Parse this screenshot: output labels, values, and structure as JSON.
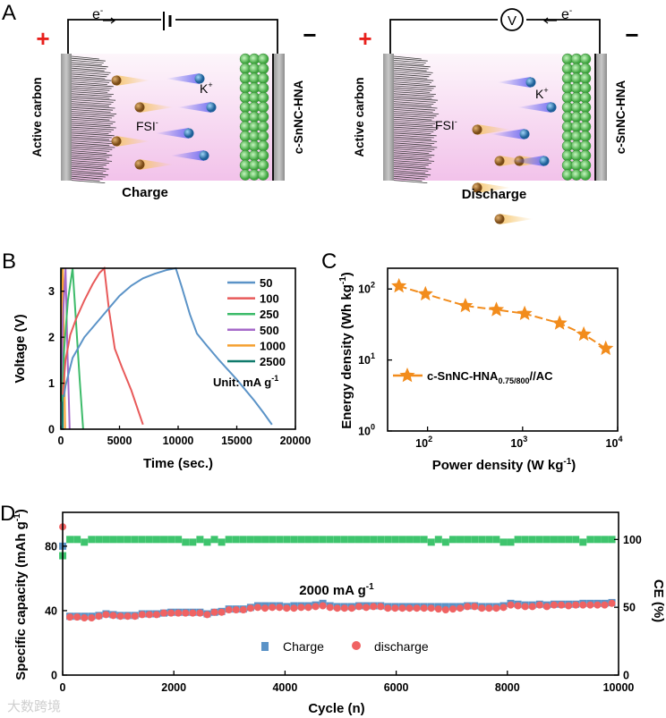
{
  "panels": {
    "a": "A",
    "b": "B",
    "c": "C",
    "d": "D"
  },
  "diagram": {
    "electron": "e",
    "electron_sup": "-",
    "plus": "+",
    "minus": "−",
    "left_electrode": "Active carbon",
    "right_electrode": "c-SnNC-HNA",
    "cation": "K",
    "cation_sup": "+",
    "anion": "FSI",
    "anion_sup": "-",
    "voltmeter": "V",
    "charge_label": "Charge",
    "discharge_label": "Discharge",
    "colors": {
      "electrolyte_top": "#fdf5fb",
      "electrolyte_bottom": "#f3c3ea",
      "anion": "#a0682a",
      "cation": "#3f8fcf",
      "shell": "#6ad46a",
      "plus": "#e8201c"
    }
  },
  "watermark": "大数跨境",
  "chart_data": [
    {
      "type": "line",
      "title": "",
      "xlabel": "Time (sec.)",
      "ylabel": "Voltage (V)",
      "xlim": [
        0,
        20000
      ],
      "ylim": [
        0,
        3.5
      ],
      "xticks": [
        "0",
        "5000",
        "10000",
        "15000",
        "20000"
      ],
      "yticks": [
        "0",
        "1",
        "2",
        "3"
      ],
      "legend_position": "top-right",
      "annotation": {
        "text": "Unit: mA g",
        "sup": "-1"
      },
      "series": [
        {
          "name": "50",
          "color": "#5b93c7",
          "x": [
            250,
            400,
            1000,
            2000,
            3000,
            4000,
            5000,
            6000,
            7000,
            8000,
            9000,
            9800,
            10300,
            11000,
            11600,
            12500,
            13500,
            15000,
            16500,
            17300,
            18000
          ],
          "y": [
            0.7,
            0.95,
            1.55,
            2.0,
            2.3,
            2.6,
            2.9,
            3.12,
            3.28,
            3.38,
            3.46,
            3.5,
            3.1,
            2.5,
            2.08,
            1.8,
            1.5,
            1.08,
            0.62,
            0.35,
            0.1
          ]
        },
        {
          "name": "100",
          "color": "#e85a5a",
          "x": [
            150,
            400,
            800,
            1300,
            2000,
            2700,
            3300,
            3700,
            4100,
            4600,
            5200,
            6000,
            7000
          ],
          "y": [
            0.75,
            1.5,
            2.05,
            2.4,
            2.8,
            3.15,
            3.4,
            3.5,
            2.6,
            1.75,
            1.35,
            0.85,
            0.1
          ]
        },
        {
          "name": "250",
          "color": "#3dbb6a",
          "x": [
            60,
            300,
            600,
            1000,
            1300,
            1600,
            1900
          ],
          "y": [
            0.6,
            1.8,
            2.8,
            3.5,
            2.3,
            1.1,
            0.0
          ]
        },
        {
          "name": "500",
          "color": "#a569c9",
          "x": [
            20,
            150,
            400,
            550,
            750
          ],
          "y": [
            0.6,
            2.3,
            3.5,
            1.8,
            0.0
          ]
        },
        {
          "name": "1000",
          "color": "#f5a030",
          "x": [
            10,
            80,
            170,
            260,
            360
          ],
          "y": [
            0.6,
            2.3,
            3.5,
            1.8,
            0.0
          ]
        },
        {
          "name": "2500",
          "color": "#0f7a6c",
          "x": [
            0,
            40,
            80,
            120,
            160
          ],
          "y": [
            0.6,
            2.4,
            3.5,
            1.7,
            0.0
          ]
        }
      ]
    },
    {
      "type": "line",
      "title": "",
      "xlabel": "Power density (W kg",
      "xlabel_sup": "-1",
      "xlabel_end": ")",
      "ylabel": "Energy density (Wh kg",
      "ylabel_sup": "-1",
      "ylabel_end": ")",
      "xscale": "log",
      "yscale": "log",
      "xlim": [
        38,
        10000
      ],
      "ylim": [
        1,
        196
      ],
      "xticks": [
        {
          "base": "10",
          "exp": "2",
          "value": 100
        },
        {
          "base": "10",
          "exp": "3",
          "value": 1000
        },
        {
          "base": "10",
          "exp": "4",
          "value": 10000
        }
      ],
      "yticks": [
        {
          "base": "10",
          "exp": "0",
          "value": 1
        },
        {
          "base": "10",
          "exp": "1",
          "value": 10
        },
        {
          "base": "10",
          "exp": "2",
          "value": 100
        }
      ],
      "legend_position": "middle-left",
      "series": [
        {
          "name": "c-SnNC-HNA",
          "name_sub": "0.75/800",
          "name_end": "//AC",
          "color": "#f28c1c",
          "marker": "star",
          "line": "dashed",
          "x": [
            50,
            95,
            250,
            530,
            1050,
            2450,
            4400,
            7500
          ],
          "y": [
            110,
            85,
            58,
            51,
            45,
            33,
            23,
            14.5
          ]
        }
      ]
    },
    {
      "type": "scatter",
      "title": "",
      "xlabel": "Cycle (n)",
      "ylabel": "Specific capacity (mAh g",
      "ylabel_sup": "-1",
      "ylabel_end": ")",
      "y2label": "CE (%)",
      "xlim": [
        0,
        10000
      ],
      "ylim": [
        0,
        101
      ],
      "y2lim": [
        0,
        120
      ],
      "xticks": [
        "0",
        "2000",
        "4000",
        "6000",
        "8000",
        "10000"
      ],
      "yticks": [
        "0",
        "40",
        "80"
      ],
      "y2ticks": [
        "0",
        "50",
        "100"
      ],
      "annotation": {
        "text": "2000 mA g",
        "sup": "-1"
      },
      "legend_position": "bottom-center",
      "x": [
        1,
        130,
        260,
        390,
        520,
        650,
        780,
        910,
        1040,
        1170,
        1300,
        1430,
        1560,
        1690,
        1820,
        1950,
        2080,
        2210,
        2340,
        2470,
        2600,
        2730,
        2860,
        2990,
        3120,
        3250,
        3380,
        3510,
        3640,
        3770,
        3900,
        4030,
        4160,
        4290,
        4420,
        4550,
        4680,
        4810,
        4940,
        5070,
        5200,
        5330,
        5460,
        5590,
        5720,
        5850,
        5980,
        6110,
        6240,
        6370,
        6500,
        6630,
        6760,
        6890,
        7020,
        7150,
        7280,
        7410,
        7540,
        7670,
        7800,
        7930,
        8060,
        8190,
        8320,
        8450,
        8580,
        8710,
        8840,
        8970,
        9100,
        9230,
        9360,
        9490,
        9620,
        9750,
        9880
      ],
      "series": [
        {
          "name": "Charge",
          "color": "#5b93c7",
          "marker": "square",
          "axis": "left",
          "y": [
            80,
            36.5,
            36.5,
            36.5,
            36.5,
            37,
            38,
            37.5,
            37,
            37,
            37,
            38,
            38,
            38,
            38.5,
            39,
            39,
            39,
            39,
            39,
            38,
            39,
            39.5,
            41,
            41,
            41,
            42,
            43,
            43,
            43,
            43,
            42.5,
            43,
            43,
            43,
            43.5,
            44.5,
            43,
            42.5,
            42.5,
            42.5,
            43,
            43,
            43,
            43,
            42.5,
            42.5,
            42.5,
            42.5,
            42.5,
            42.5,
            42.5,
            42.5,
            42.5,
            42.5,
            42.5,
            43,
            43,
            42.5,
            42.5,
            42.5,
            43,
            44.5,
            44,
            43.5,
            43.5,
            44,
            43.5,
            44,
            44,
            44,
            44,
            44.5,
            44.5,
            44.5,
            44.5,
            45
          ]
        },
        {
          "name": "discharge",
          "color": "#f06262",
          "marker": "circle",
          "axis": "left",
          "y": [
            92,
            36,
            36,
            35.5,
            35.5,
            36.5,
            37.5,
            37,
            36.5,
            36.5,
            36.5,
            37.5,
            37.5,
            37.5,
            38.5,
            38.5,
            38.5,
            38.5,
            38.5,
            38.5,
            37.5,
            39,
            39,
            40.5,
            40.5,
            40.5,
            41.5,
            42,
            41.5,
            42,
            42,
            41.5,
            41.5,
            42,
            42,
            42.5,
            43,
            42,
            41.5,
            41.5,
            41.5,
            42.5,
            42,
            42.5,
            42.5,
            41.5,
            41.5,
            41.5,
            41.5,
            41.5,
            41.5,
            41.5,
            41,
            40.5,
            41,
            41.5,
            42.5,
            42.5,
            41.5,
            41.5,
            41.5,
            42,
            43.5,
            43,
            42.5,
            42.5,
            43.5,
            42.5,
            43.5,
            43.5,
            43,
            43.5,
            43.5,
            43.5,
            43.5,
            43.5,
            44.5
          ]
        },
        {
          "name": "CE",
          "color": "#3ec46d",
          "marker": "square",
          "axis": "right",
          "y": [
            88,
            100,
            100,
            98,
            100,
            100,
            100,
            100,
            100,
            100,
            100,
            100,
            100,
            100,
            100,
            100,
            100,
            98,
            98,
            100,
            98,
            100,
            98,
            100,
            100,
            100,
            100,
            100,
            100,
            100,
            100,
            100,
            100,
            100,
            100,
            100,
            100,
            100,
            100,
            100,
            100,
            100,
            100,
            100,
            100,
            100,
            100,
            100,
            100,
            100,
            100,
            98,
            100,
            98,
            100,
            100,
            100,
            100,
            100,
            100,
            100,
            98,
            98,
            100,
            100,
            100,
            100,
            100,
            100,
            100,
            100,
            100,
            98,
            100,
            100,
            100,
            100
          ]
        }
      ]
    }
  ]
}
